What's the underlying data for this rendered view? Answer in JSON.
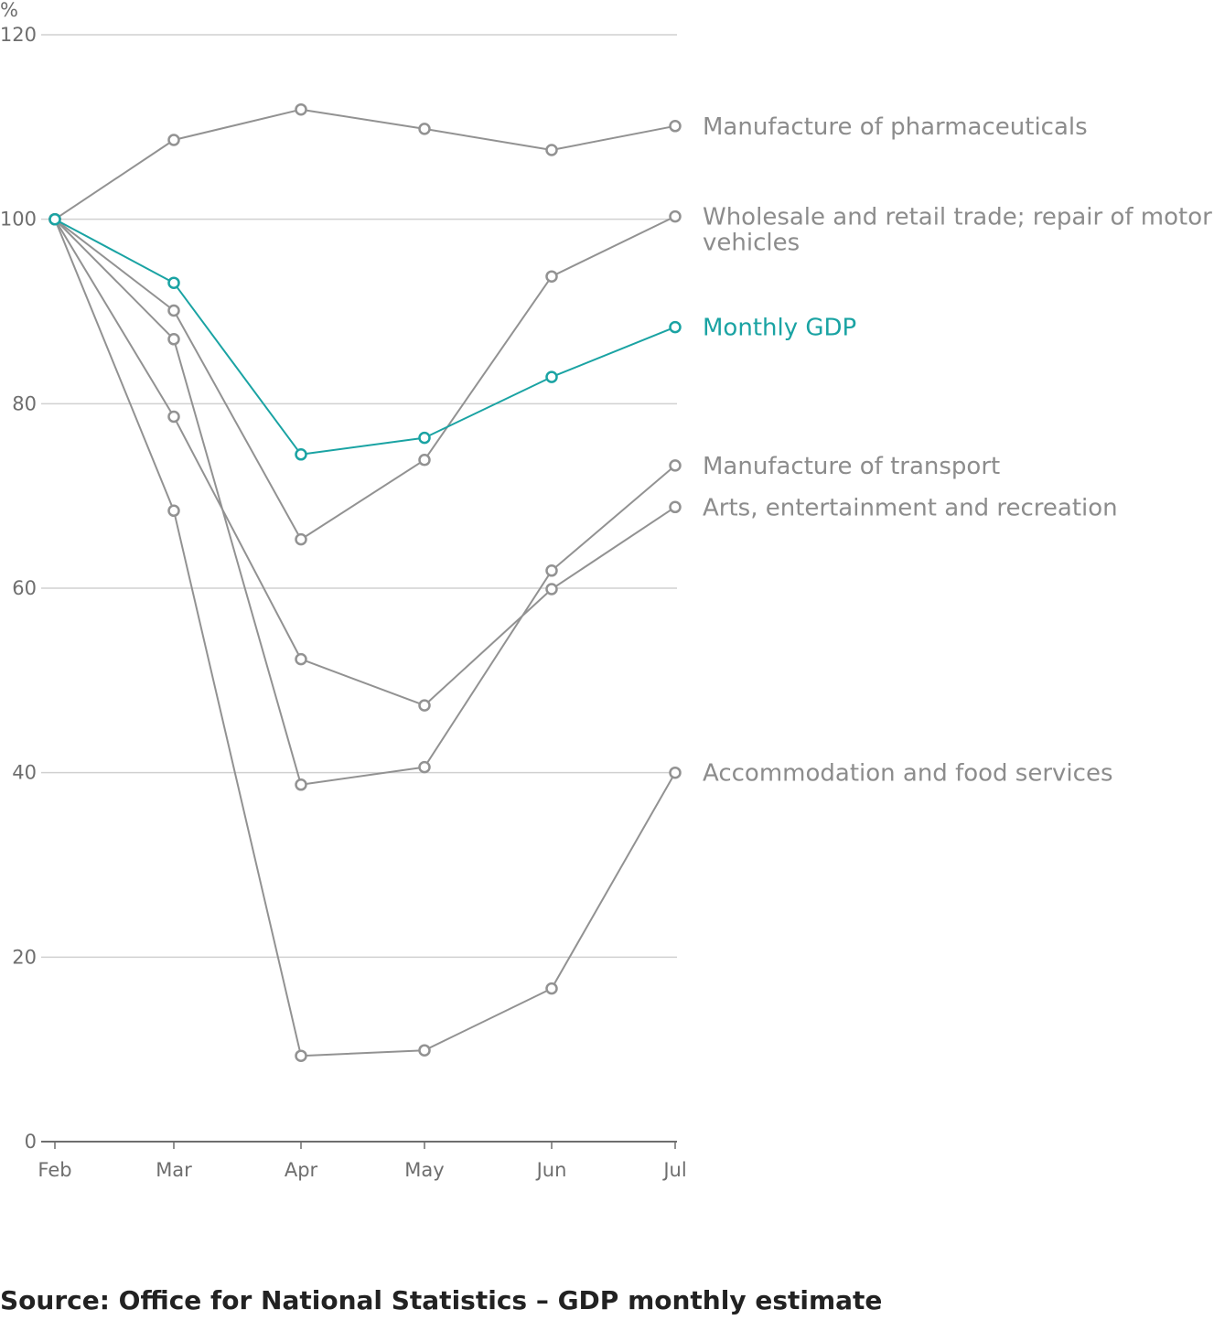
{
  "chart_data": {
    "type": "line",
    "title": "",
    "xlabel": "",
    "ylabel": "%",
    "ylim": [
      0,
      120
    ],
    "yticks": [
      0,
      20,
      40,
      60,
      80,
      100,
      120
    ],
    "categories": [
      "Feb",
      "Mar",
      "Apr",
      "May",
      "Jun",
      "Jul"
    ],
    "grid": true,
    "legend": "direct labels right of last point",
    "colors": {
      "default": "#929292",
      "highlight": "#1aa3a3",
      "label_default": "#8c8c8c",
      "axis": "#6e6e6e",
      "gridline": "#d0d0d0"
    },
    "series": [
      {
        "name": "Manufacture of pharmaceuticals",
        "label_lines": [
          "Manufacture of pharmaceuticals"
        ],
        "values": [
          100,
          108.6,
          111.9,
          109.8,
          107.5,
          110.1
        ],
        "highlight": false
      },
      {
        "name": "Wholesale and retail trade; repair of motor vehicles",
        "label_lines": [
          "Wholesale and retail trade; repair of motor",
          "vehicles"
        ],
        "values": [
          100,
          90.1,
          65.3,
          73.9,
          93.8,
          100.3
        ],
        "highlight": false
      },
      {
        "name": "Monthly GDP",
        "label_lines": [
          "Monthly GDP"
        ],
        "values": [
          100,
          93.1,
          74.5,
          76.3,
          82.9,
          88.3
        ],
        "highlight": true
      },
      {
        "name": "Manufacture of transport",
        "label_lines": [
          "Manufacture of transport"
        ],
        "values": [
          100,
          87.0,
          38.7,
          40.6,
          61.9,
          73.3
        ],
        "highlight": false
      },
      {
        "name": "Arts, entertainment and recreation",
        "label_lines": [
          "Arts, entertainment and recreation"
        ],
        "values": [
          100,
          78.6,
          52.3,
          47.3,
          59.9,
          68.8
        ],
        "highlight": false
      },
      {
        "name": "Accommodation and food services",
        "label_lines": [
          "Accommodation and food services"
        ],
        "values": [
          100,
          68.4,
          9.3,
          9.9,
          16.6,
          40.0
        ],
        "highlight": false
      }
    ]
  },
  "source": "Source: Office for National Statistics – GDP monthly estimate"
}
